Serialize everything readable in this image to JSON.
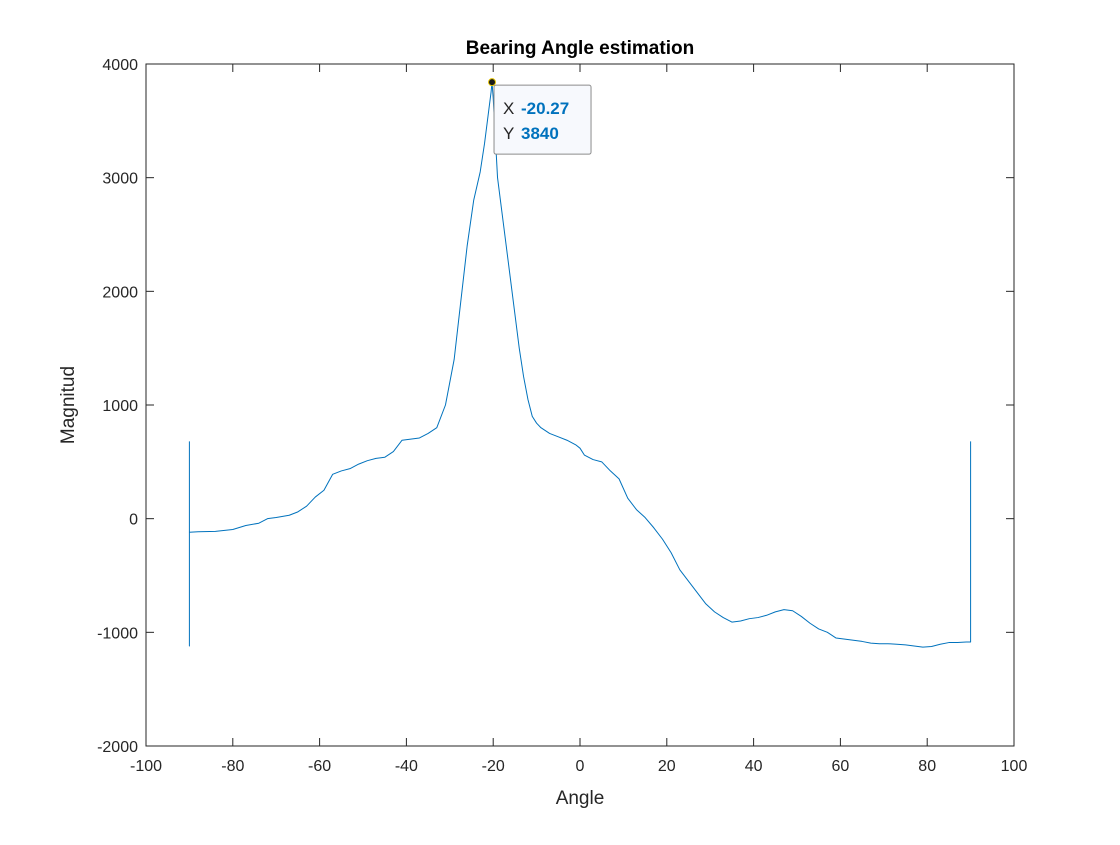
{
  "chart_data": {
    "type": "line",
    "title": "Bearing Angle estimation",
    "xlabel": "Angle",
    "ylabel": "Magnitud",
    "xlim": [
      -100,
      100
    ],
    "ylim": [
      -2000,
      4000
    ],
    "xticks": [
      -100,
      -80,
      -60,
      -40,
      -20,
      0,
      20,
      40,
      60,
      80,
      100
    ],
    "yticks": [
      -2000,
      -1000,
      0,
      1000,
      2000,
      3000,
      4000
    ],
    "xtick_labels": [
      "-100",
      "-80",
      "-60",
      "-40",
      "-20",
      "0",
      "20",
      "40",
      "60",
      "80",
      "100"
    ],
    "ytick_labels": [
      "-2000",
      "-1000",
      "0",
      "1000",
      "2000",
      "3000",
      "4000"
    ],
    "grid": false,
    "series_color": "#0072BD",
    "series": [
      {
        "x": [
          -90,
          -90,
          -90,
          -88,
          -84,
          -80,
          -77,
          -74,
          -72,
          -70,
          -67,
          -65,
          -63,
          -61,
          -59,
          -57,
          -55,
          -53,
          -51,
          -49,
          -47,
          -45,
          -43,
          -41,
          -39,
          -37,
          -35,
          -33,
          -31,
          -29,
          -27.5,
          -26,
          -24.5,
          -23,
          -22,
          -21,
          -20.5,
          -20.27,
          -20,
          -19.5,
          -19,
          -18,
          -17,
          -16,
          -15,
          -14,
          -13,
          -12,
          -11,
          -10,
          -9,
          -7,
          -5,
          -3,
          -1,
          0,
          1,
          3,
          5,
          7,
          9,
          11,
          13,
          15,
          17,
          19,
          21,
          23,
          25,
          27,
          29,
          31,
          33,
          35,
          37,
          39,
          41,
          43,
          45,
          47,
          49,
          51,
          53,
          55,
          57,
          59,
          61,
          63,
          65,
          67,
          69,
          71,
          73,
          75,
          77,
          79,
          81,
          83,
          85,
          87,
          89,
          90,
          90
        ],
        "y": [
          680,
          -1120,
          -120,
          -115,
          -112,
          -95,
          -60,
          -40,
          0,
          10,
          30,
          60,
          110,
          190,
          250,
          390,
          420,
          440,
          480,
          510,
          530,
          540,
          590,
          690,
          700,
          710,
          750,
          800,
          1000,
          1400,
          1900,
          2400,
          2800,
          3050,
          3300,
          3600,
          3750,
          3840,
          3700,
          3350,
          3000,
          2700,
          2400,
          2100,
          1800,
          1500,
          1250,
          1050,
          900,
          840,
          800,
          750,
          720,
          690,
          650,
          620,
          560,
          520,
          500,
          420,
          350,
          180,
          80,
          10,
          -80,
          -180,
          -300,
          -450,
          -550,
          -650,
          -750,
          -820,
          -870,
          -910,
          -900,
          -880,
          -870,
          -850,
          -820,
          -800,
          -810,
          -860,
          -920,
          -970,
          -1000,
          -1050,
          -1060,
          -1070,
          -1080,
          -1095,
          -1100,
          -1100,
          -1105,
          -1110,
          -1120,
          -1130,
          -1125,
          -1105,
          -1090,
          -1090,
          -1085,
          -1085,
          680
        ]
      }
    ],
    "annotation": {
      "type": "datatip",
      "x": -20.27,
      "y": 3840,
      "x_key": "X",
      "y_key": "Y",
      "x_text": "-20.27",
      "y_text": "3840",
      "value_color": "#0072BD"
    }
  }
}
